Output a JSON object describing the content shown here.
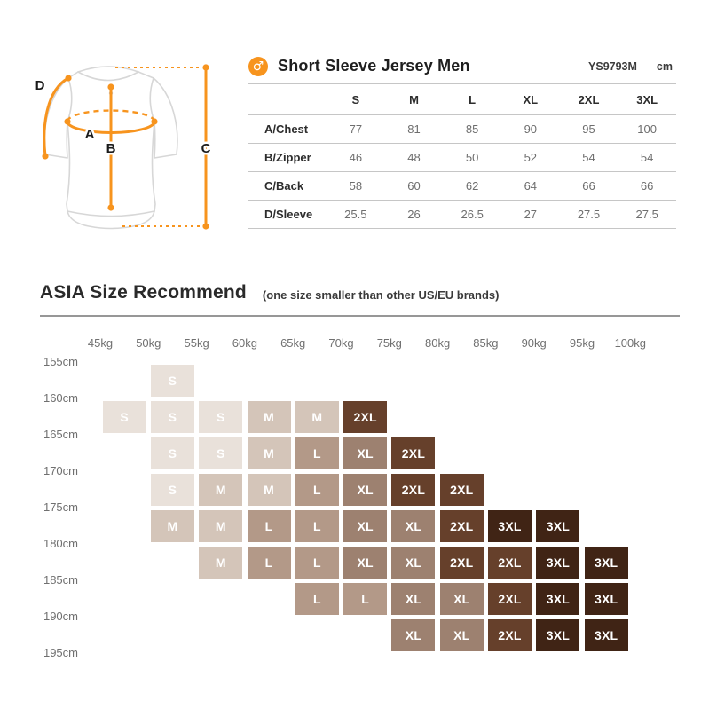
{
  "header": {
    "male_symbol": "♂",
    "title": "Short Sleeve Jersey Men",
    "model": "YS9793M",
    "unit": "cm"
  },
  "diagram": {
    "accent_color": "#F7941E",
    "measure_labels": [
      "A",
      "B",
      "C",
      "D"
    ]
  },
  "asia": {
    "title": "ASIA Size Recommend",
    "subtitle": "(one size smaller than other US/EU brands)"
  },
  "chart_data": [
    {
      "type": "table",
      "title": "Short Sleeve Jersey Men",
      "model": "YS9793M",
      "unit": "cm",
      "columns": [
        "S",
        "M",
        "L",
        "XL",
        "2XL",
        "3XL"
      ],
      "rows": [
        {
          "label": "A/Chest",
          "values": [
            77,
            81,
            85,
            90,
            95,
            100
          ]
        },
        {
          "label": "B/Zipper",
          "values": [
            46,
            48,
            50,
            52,
            54,
            54
          ]
        },
        {
          "label": "C/Back",
          "values": [
            58,
            60,
            62,
            64,
            66,
            66
          ]
        },
        {
          "label": "D/Sleeve",
          "values": [
            25.5,
            26,
            26.5,
            27,
            27.5,
            27.5
          ]
        }
      ]
    },
    {
      "type": "heatmap",
      "title": "ASIA Size Recommend",
      "subtitle": "(one size smaller than other US/EU brands)",
      "x_labels": [
        "45kg",
        "50kg",
        "55kg",
        "60kg",
        "65kg",
        "70kg",
        "75kg",
        "80kg",
        "85kg",
        "90kg",
        "95kg",
        "100kg"
      ],
      "y_labels": [
        "155cm",
        "160cm",
        "165cm",
        "170cm",
        "175cm",
        "180cm",
        "185cm",
        "190cm",
        "195cm"
      ],
      "size_colors": {
        "S": "#E9E1DA",
        "M": "#D4C5B9",
        "L": "#B39988",
        "XL": "#9D8170",
        "2XL": "#66402B",
        "3XL": "#402415"
      },
      "rows": [
        {
          "height_range": "155-160cm",
          "start_weight_index": 1,
          "sizes": [
            "S"
          ]
        },
        {
          "height_range": "160-165cm",
          "start_weight_index": 0,
          "sizes": [
            "S",
            "S",
            "S",
            "M",
            "M",
            "2XL"
          ]
        },
        {
          "height_range": "165-170cm",
          "start_weight_index": 1,
          "sizes": [
            "S",
            "S",
            "M",
            "L",
            "XL",
            "2XL"
          ]
        },
        {
          "height_range": "170-175cm",
          "start_weight_index": 1,
          "sizes": [
            "S",
            "M",
            "M",
            "L",
            "XL",
            "2XL",
            "2XL"
          ]
        },
        {
          "height_range": "175-180cm",
          "start_weight_index": 1,
          "sizes": [
            "M",
            "M",
            "L",
            "L",
            "XL",
            "XL",
            "2XL",
            "3XL",
            "3XL"
          ]
        },
        {
          "height_range": "180-185cm",
          "start_weight_index": 2,
          "sizes": [
            "M",
            "L",
            "L",
            "XL",
            "XL",
            "2XL",
            "2XL",
            "3XL",
            "3XL"
          ]
        },
        {
          "height_range": "185-190cm",
          "start_weight_index": 4,
          "sizes": [
            "L",
            "L",
            "XL",
            "XL",
            "2XL",
            "3XL",
            "3XL"
          ]
        },
        {
          "height_range": "190-195cm",
          "start_weight_index": 6,
          "sizes": [
            "XL",
            "XL",
            "2XL",
            "3XL",
            "3XL"
          ]
        }
      ]
    }
  ]
}
